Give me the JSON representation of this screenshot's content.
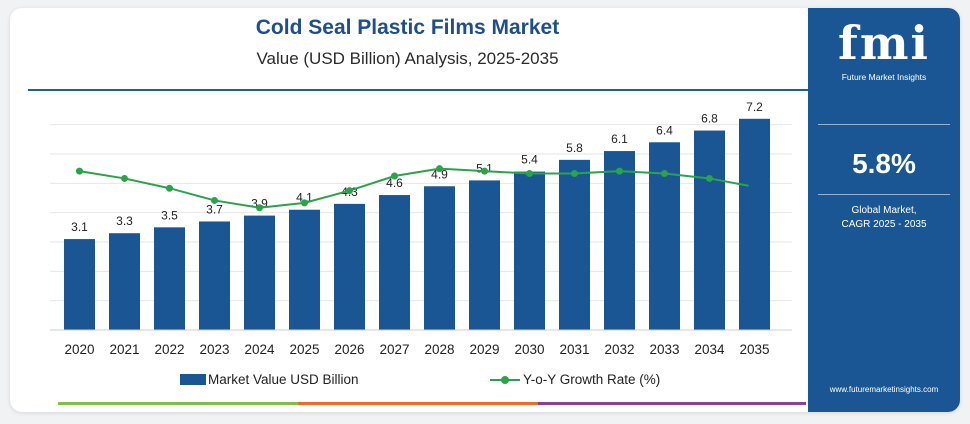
{
  "header": {
    "title": "Cold Seal Plastic Films Market",
    "subtitle": "Value (USD Billion) Analysis, 2025-2035"
  },
  "chart_data": {
    "type": "bar",
    "title": "Cold Seal Plastic Films Market",
    "subtitle": "Value (USD Billion) Analysis, 2025-2035",
    "categories": [
      "2020",
      "2021",
      "2022",
      "2023",
      "2024",
      "2025",
      "2026",
      "2027",
      "2028",
      "2029",
      "2030",
      "2031",
      "2032",
      "2033",
      "2034",
      "2035"
    ],
    "series": [
      {
        "name": "Market Value USD Billion",
        "type": "bar",
        "color": "#1a5693",
        "values": [
          3.1,
          3.3,
          3.5,
          3.7,
          3.9,
          4.1,
          4.3,
          4.6,
          4.9,
          5.1,
          5.4,
          5.8,
          6.1,
          6.4,
          6.8,
          7.2
        ]
      },
      {
        "name": "Y-o-Y Growth Rate (%)",
        "type": "line",
        "color": "#2aa34a",
        "values": [
          6.5,
          6.2,
          5.8,
          5.3,
          5.0,
          5.2,
          5.7,
          6.3,
          6.6,
          6.5,
          6.4,
          6.4,
          6.5,
          6.4,
          6.2,
          5.9
        ]
      }
    ],
    "ylim": [
      0,
      7.5
    ],
    "growth_ylim": [
      0,
      9
    ],
    "grid": true,
    "legend": "bottom"
  },
  "legend": {
    "bar_label": "Market Value USD Billion",
    "line_label": "Y-o-Y Growth Rate (%)"
  },
  "side_panel": {
    "logo_text": "fmi",
    "logo_subtitle": "Future Market Insights",
    "cagr_value": "5.8%",
    "cagr_line1": "Global Market,",
    "cagr_line2": "CAGR 2025 - 2035",
    "url": "www.futuremarketinsights.com"
  },
  "colors": {
    "bar": "#1a5693",
    "line": "#2aa34a",
    "accent_green": "#7cc242",
    "accent_orange": "#f26b21",
    "accent_purple": "#8a3fa0"
  }
}
